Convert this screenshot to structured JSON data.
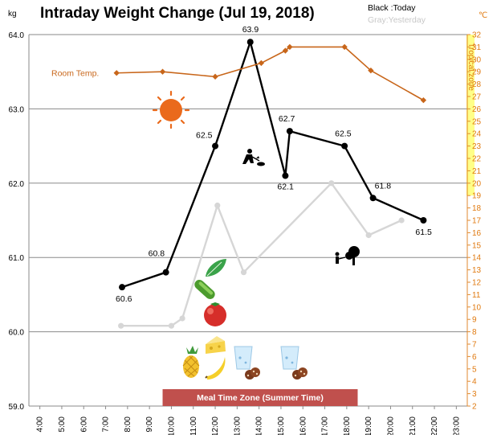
{
  "chart_data": {
    "type": "line",
    "title": "Intraday Weight Change (Jul 19, 2018)",
    "y_left_unit": "kg",
    "y_right_unit": "℃",
    "legend": {
      "today": "Black :Today",
      "yesterday": "Gray:Yesterday"
    },
    "y_left": {
      "min": 59.0,
      "max": 64.0,
      "ticks": [
        "59.0",
        "60.0",
        "61.0",
        "62.0",
        "63.0",
        "64.0"
      ]
    },
    "y_right": {
      "min": 2,
      "max": 32,
      "ticks": [
        "2",
        "3",
        "4",
        "5",
        "6",
        "7",
        "8",
        "9",
        "10",
        "11",
        "12",
        "13",
        "14",
        "15",
        "16",
        "17",
        "18",
        "19",
        "20",
        "21",
        "22",
        "23",
        "24",
        "25",
        "26",
        "27",
        "28",
        "29",
        "30",
        "31",
        "32"
      ]
    },
    "x_ticks": [
      "4:00",
      "5:00",
      "6:00",
      "7:00",
      "8:00",
      "9:00",
      "10:00",
      "11:00",
      "12:00",
      "13:00",
      "14:00",
      "15:00",
      "16:00",
      "17:00",
      "18:00",
      "19:00",
      "20:00",
      "21:00",
      "22:00",
      "23:00"
    ],
    "x_range_hours": [
      3.5,
      23.5
    ],
    "tropical_zone": {
      "label": "Tropical zone",
      "from": 19,
      "to": 32
    },
    "meal_zone": {
      "label": "Meal Time Zone  (Summer Time)",
      "from_hour": 9.6,
      "to_hour": 18.5
    },
    "room_temp_label": "Room Temp.",
    "series": [
      {
        "name": "Black :Today",
        "color": "#000000",
        "points": [
          {
            "x": 7.75,
            "y": 60.6,
            "label": "60.6"
          },
          {
            "x": 9.75,
            "y": 60.8,
            "label": "60.8"
          },
          {
            "x": 12.0,
            "y": 62.5,
            "label": "62.5"
          },
          {
            "x": 13.6,
            "y": 63.9,
            "label": "63.9"
          },
          {
            "x": 15.2,
            "y": 62.1,
            "label": "62.1"
          },
          {
            "x": 15.4,
            "y": 62.7,
            "label": "62.7"
          },
          {
            "x": 17.9,
            "y": 62.5,
            "label": "62.5"
          },
          {
            "x": 19.2,
            "y": 61.8,
            "label": "61.8"
          },
          {
            "x": 21.5,
            "y": 61.5,
            "label": "61.5"
          }
        ]
      },
      {
        "name": "Gray:Yesterday",
        "color": "#d6d6d6",
        "points": [
          {
            "x": 7.7,
            "y": 60.08
          },
          {
            "x": 10.0,
            "y": 60.08
          },
          {
            "x": 10.5,
            "y": 60.18
          },
          {
            "x": 12.1,
            "y": 61.7
          },
          {
            "x": 13.3,
            "y": 60.8
          },
          {
            "x": 17.3,
            "y": 62.0
          },
          {
            "x": 19.0,
            "y": 61.3
          },
          {
            "x": 20.5,
            "y": 61.5
          }
        ]
      },
      {
        "name": "Room Temp.",
        "color": "#c8661a",
        "axis": "right",
        "points": [
          {
            "x": 7.5,
            "y": 28.9
          },
          {
            "x": 9.6,
            "y": 29.0
          },
          {
            "x": 12.0,
            "y": 28.6
          },
          {
            "x": 14.1,
            "y": 29.7
          },
          {
            "x": 15.2,
            "y": 30.7
          },
          {
            "x": 15.4,
            "y": 31.0
          },
          {
            "x": 17.9,
            "y": 31.0
          },
          {
            "x": 19.1,
            "y": 29.1
          },
          {
            "x": 21.5,
            "y": 26.7
          }
        ]
      }
    ],
    "grid": true
  },
  "icons": [
    "sun-icon",
    "shoveling-person-icon",
    "person-with-tree-icon",
    "spinach-icon",
    "cucumber-icon",
    "tomato-icon",
    "pineapple-icon",
    "cheese-icon",
    "banana-icon",
    "water-glass-icon",
    "cookies-icon"
  ],
  "colors": {
    "temp": "#c8661a",
    "tropical_band": "#ffff88",
    "meal_band": "#c0504d",
    "sun": "#ea6a1c"
  }
}
